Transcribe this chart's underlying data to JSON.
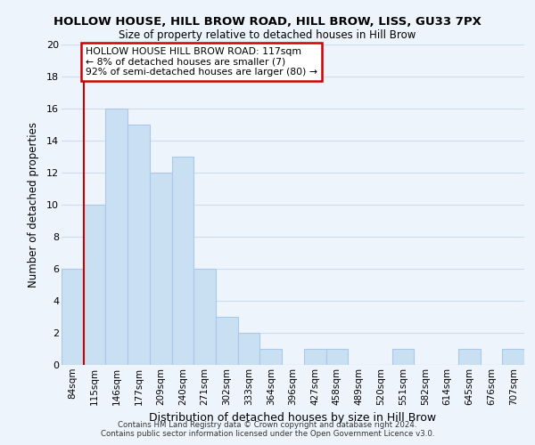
{
  "title": "HOLLOW HOUSE, HILL BROW ROAD, HILL BROW, LISS, GU33 7PX",
  "subtitle": "Size of property relative to detached houses in Hill Brow",
  "xlabel": "Distribution of detached houses by size in Hill Brow",
  "ylabel": "Number of detached properties",
  "bar_labels": [
    "84sqm",
    "115sqm",
    "146sqm",
    "177sqm",
    "209sqm",
    "240sqm",
    "271sqm",
    "302sqm",
    "333sqm",
    "364sqm",
    "396sqm",
    "427sqm",
    "458sqm",
    "489sqm",
    "520sqm",
    "551sqm",
    "582sqm",
    "614sqm",
    "645sqm",
    "676sqm",
    "707sqm"
  ],
  "bar_values": [
    6,
    10,
    16,
    15,
    12,
    13,
    6,
    3,
    2,
    1,
    0,
    1,
    1,
    0,
    0,
    1,
    0,
    0,
    1,
    0,
    1
  ],
  "bar_color": "#c9dff2",
  "bar_edge_color": "#aac8e8",
  "annotation_title": "HOLLOW HOUSE HILL BROW ROAD: 117sqm",
  "annotation_line1": "← 8% of detached houses are smaller (7)",
  "annotation_line2": "92% of semi-detached houses are larger (80) →",
  "annotation_box_color": "#ffffff",
  "annotation_box_edge": "#cc0000",
  "redline_color": "#cc0000",
  "ylim": [
    0,
    20
  ],
  "yticks": [
    0,
    2,
    4,
    6,
    8,
    10,
    12,
    14,
    16,
    18,
    20
  ],
  "footer_line1": "Contains HM Land Registry data © Crown copyright and database right 2024.",
  "footer_line2": "Contains public sector information licensed under the Open Government Licence v3.0.",
  "bg_color": "#eef4fc",
  "grid_color": "#ccddf0"
}
